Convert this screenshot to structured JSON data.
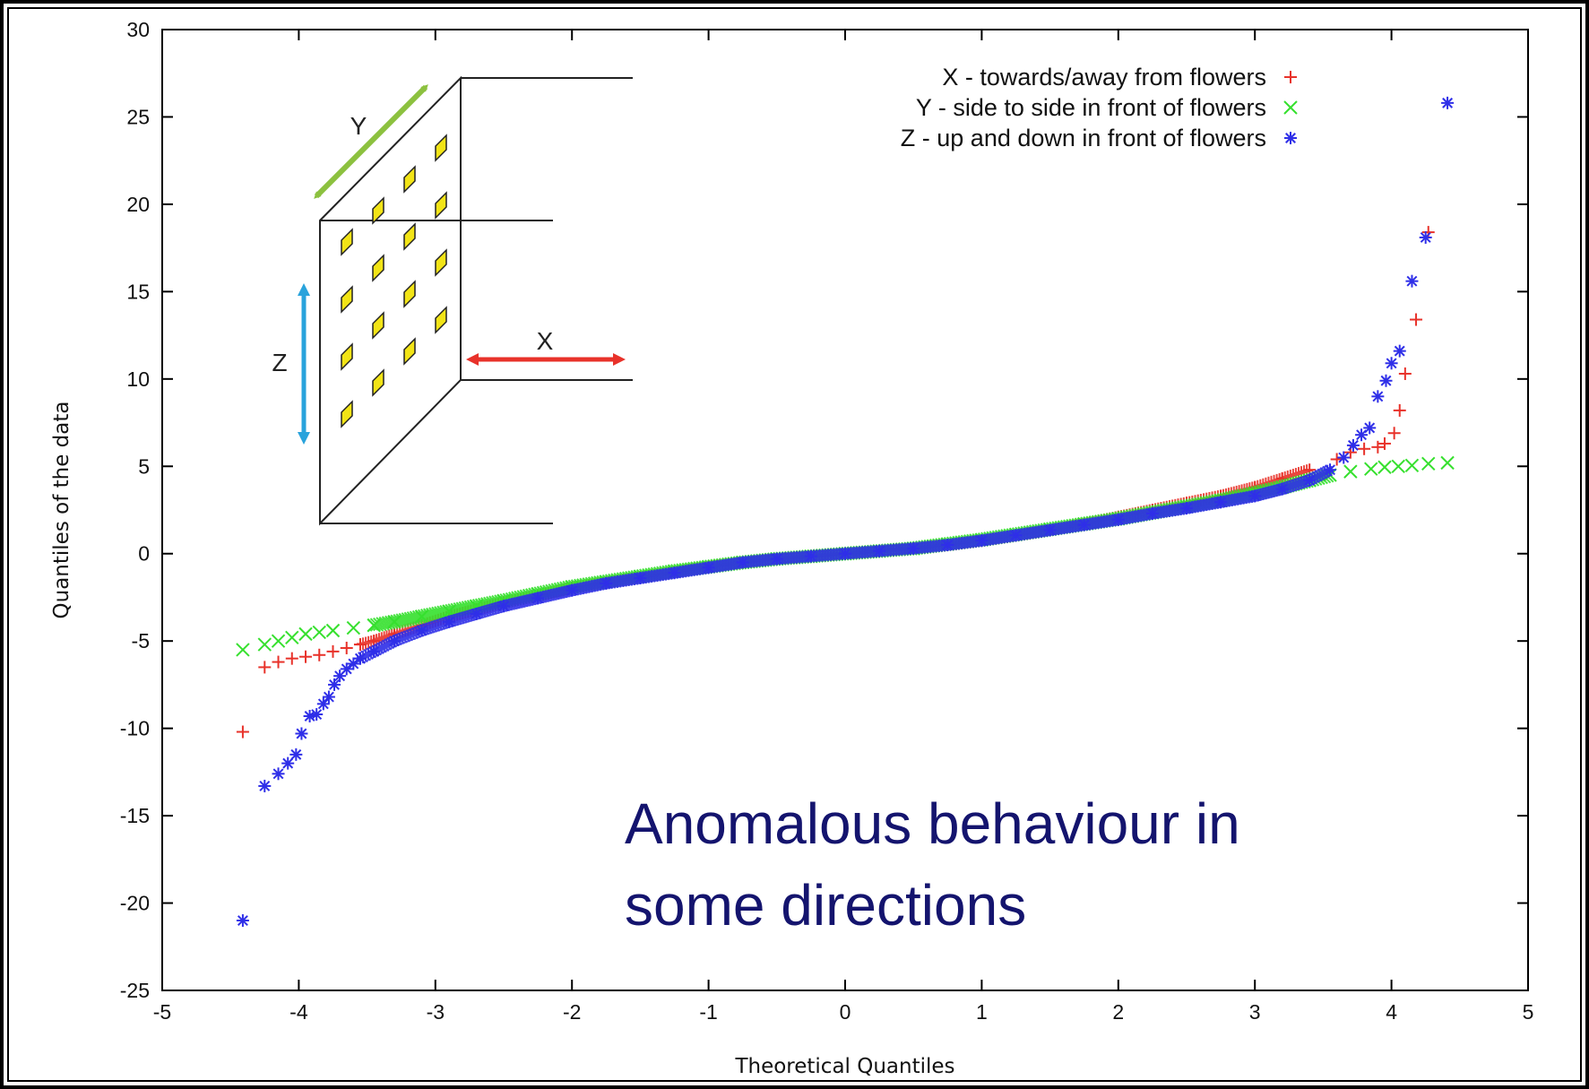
{
  "chart_data": {
    "type": "scatter",
    "title": "",
    "xlabel": "Theoretical Quantiles",
    "ylabel": "Quantiles of the data",
    "xlim": [
      -5,
      5
    ],
    "ylim": [
      -25,
      30
    ],
    "x_ticks": [
      -5,
      -4,
      -3,
      -2,
      -1,
      0,
      1,
      2,
      3,
      4,
      5
    ],
    "y_ticks": [
      -25,
      -20,
      -15,
      -10,
      -5,
      0,
      5,
      10,
      15,
      20,
      25,
      30
    ],
    "grid": false,
    "legend_position": "top-right",
    "series": [
      {
        "name": "X - towards/away from flowers",
        "marker": "plus",
        "color": "#e8322a",
        "points": [
          [
            -4.41,
            -10.2
          ],
          [
            -4.25,
            -6.5
          ],
          [
            -4.15,
            -6.2
          ],
          [
            -4.05,
            -6.0
          ],
          [
            -3.95,
            -5.9
          ],
          [
            -3.85,
            -5.8
          ],
          [
            -3.75,
            -5.6
          ],
          [
            -3.65,
            -5.4
          ],
          [
            -3.55,
            -5.2
          ],
          [
            -3.45,
            -5.0
          ],
          [
            -3.3,
            -4.6
          ],
          [
            -3.1,
            -4.1
          ],
          [
            -2.9,
            -3.6
          ],
          [
            -2.7,
            -3.2
          ],
          [
            -2.5,
            -2.8
          ],
          [
            -2.25,
            -2.4
          ],
          [
            -2.0,
            -1.95
          ],
          [
            -1.75,
            -1.65
          ],
          [
            -1.5,
            -1.35
          ],
          [
            -1.25,
            -1.05
          ],
          [
            -1.0,
            -0.75
          ],
          [
            -0.75,
            -0.5
          ],
          [
            -0.5,
            -0.3
          ],
          [
            -0.25,
            -0.15
          ],
          [
            0.0,
            0.0
          ],
          [
            0.25,
            0.15
          ],
          [
            0.5,
            0.3
          ],
          [
            0.75,
            0.5
          ],
          [
            1.0,
            0.75
          ],
          [
            1.25,
            1.05
          ],
          [
            1.5,
            1.35
          ],
          [
            1.75,
            1.7
          ],
          [
            2.0,
            2.1
          ],
          [
            2.25,
            2.5
          ],
          [
            2.5,
            2.9
          ],
          [
            2.75,
            3.3
          ],
          [
            3.0,
            3.8
          ],
          [
            3.2,
            4.3
          ],
          [
            3.4,
            4.8
          ],
          [
            3.6,
            5.4
          ],
          [
            3.7,
            5.8
          ],
          [
            3.8,
            6.0
          ],
          [
            3.9,
            6.1
          ],
          [
            3.95,
            6.3
          ],
          [
            4.02,
            6.9
          ],
          [
            4.06,
            8.2
          ],
          [
            4.1,
            10.3
          ],
          [
            4.18,
            13.4
          ],
          [
            4.27,
            18.4
          ]
        ]
      },
      {
        "name": "Y - side to side in front of flowers",
        "marker": "cross",
        "color": "#36e02e",
        "points": [
          [
            -4.41,
            -5.5
          ],
          [
            -4.25,
            -5.2
          ],
          [
            -4.15,
            -5.0
          ],
          [
            -4.05,
            -4.8
          ],
          [
            -3.95,
            -4.6
          ],
          [
            -3.85,
            -4.5
          ],
          [
            -3.75,
            -4.4
          ],
          [
            -3.6,
            -4.25
          ],
          [
            -3.45,
            -4.1
          ],
          [
            -3.3,
            -3.9
          ],
          [
            -3.1,
            -3.6
          ],
          [
            -2.9,
            -3.3
          ],
          [
            -2.7,
            -3.0
          ],
          [
            -2.5,
            -2.7
          ],
          [
            -2.25,
            -2.3
          ],
          [
            -2.0,
            -1.9
          ],
          [
            -1.75,
            -1.6
          ],
          [
            -1.5,
            -1.3
          ],
          [
            -1.25,
            -1.0
          ],
          [
            -1.0,
            -0.75
          ],
          [
            -0.75,
            -0.5
          ],
          [
            -0.5,
            -0.3
          ],
          [
            -0.25,
            -0.15
          ],
          [
            0.0,
            0.0
          ],
          [
            0.25,
            0.15
          ],
          [
            0.5,
            0.3
          ],
          [
            0.75,
            0.55
          ],
          [
            1.0,
            0.8
          ],
          [
            1.25,
            1.1
          ],
          [
            1.5,
            1.4
          ],
          [
            1.75,
            1.7
          ],
          [
            2.0,
            2.0
          ],
          [
            2.25,
            2.35
          ],
          [
            2.5,
            2.7
          ],
          [
            2.75,
            3.05
          ],
          [
            3.0,
            3.45
          ],
          [
            3.2,
            3.8
          ],
          [
            3.4,
            4.2
          ],
          [
            3.55,
            4.5
          ],
          [
            3.7,
            4.7
          ],
          [
            3.85,
            4.85
          ],
          [
            3.95,
            4.95
          ],
          [
            4.05,
            5.0
          ],
          [
            4.15,
            5.05
          ],
          [
            4.27,
            5.15
          ],
          [
            4.41,
            5.2
          ]
        ]
      },
      {
        "name": "Z - up and down in front of flowers",
        "marker": "star",
        "color": "#2f2fe8",
        "points": [
          [
            -4.41,
            -21.0
          ],
          [
            -4.25,
            -13.3
          ],
          [
            -4.15,
            -12.6
          ],
          [
            -4.08,
            -12.0
          ],
          [
            -4.02,
            -11.5
          ],
          [
            -3.98,
            -10.3
          ],
          [
            -3.92,
            -9.3
          ],
          [
            -3.87,
            -9.2
          ],
          [
            -3.82,
            -8.6
          ],
          [
            -3.78,
            -8.2
          ],
          [
            -3.74,
            -7.5
          ],
          [
            -3.7,
            -7.0
          ],
          [
            -3.65,
            -6.6
          ],
          [
            -3.6,
            -6.3
          ],
          [
            -3.55,
            -6.0
          ],
          [
            -3.45,
            -5.6
          ],
          [
            -3.3,
            -5.0
          ],
          [
            -3.1,
            -4.4
          ],
          [
            -2.9,
            -3.9
          ],
          [
            -2.7,
            -3.45
          ],
          [
            -2.5,
            -3.0
          ],
          [
            -2.25,
            -2.55
          ],
          [
            -2.0,
            -2.1
          ],
          [
            -1.75,
            -1.7
          ],
          [
            -1.5,
            -1.4
          ],
          [
            -1.25,
            -1.1
          ],
          [
            -1.0,
            -0.8
          ],
          [
            -0.75,
            -0.5
          ],
          [
            -0.5,
            -0.3
          ],
          [
            -0.25,
            -0.15
          ],
          [
            0.0,
            0.0
          ],
          [
            0.25,
            0.15
          ],
          [
            0.5,
            0.3
          ],
          [
            0.75,
            0.5
          ],
          [
            1.0,
            0.75
          ],
          [
            1.25,
            1.05
          ],
          [
            1.5,
            1.35
          ],
          [
            1.75,
            1.65
          ],
          [
            2.0,
            1.95
          ],
          [
            2.25,
            2.3
          ],
          [
            2.5,
            2.6
          ],
          [
            2.75,
            2.95
          ],
          [
            3.0,
            3.3
          ],
          [
            3.2,
            3.7
          ],
          [
            3.4,
            4.2
          ],
          [
            3.55,
            4.8
          ],
          [
            3.65,
            5.5
          ],
          [
            3.72,
            6.2
          ],
          [
            3.78,
            6.8
          ],
          [
            3.84,
            7.2
          ],
          [
            3.9,
            9.0
          ],
          [
            3.96,
            9.9
          ],
          [
            4.0,
            10.9
          ],
          [
            4.06,
            11.6
          ],
          [
            4.15,
            15.6
          ],
          [
            4.25,
            18.1
          ],
          [
            4.41,
            25.8
          ]
        ]
      }
    ],
    "annotations": {
      "note_line1": "Anomalous behaviour in",
      "note_line2": "some directions"
    },
    "inset": {
      "label_y": "Y",
      "label_z": "Z",
      "label_x": "X",
      "panel_color": "#ffffff",
      "square_color": "#f2e416",
      "arrow_y_color": "#8cc13f",
      "arrow_z_color": "#29a3dc",
      "arrow_x_color": "#e8322a"
    }
  }
}
